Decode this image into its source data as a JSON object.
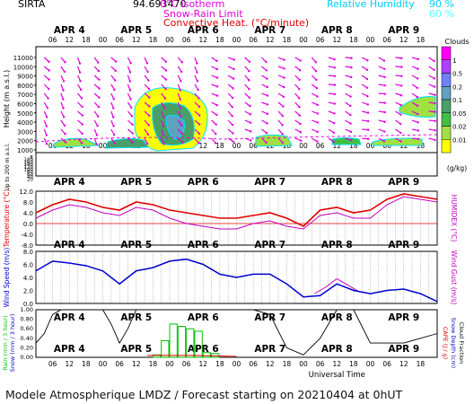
{
  "header": {
    "site": "SIRTA",
    "coords": "94.693470",
    "legend_isotherm": "0°C isotherm",
    "legend_snowrain": "Snow-Rain Limit",
    "legend_convective": "Convective Heat. (°C/minute)",
    "rh_label": "Relative Humidity",
    "rh_90": "90 %",
    "rh_60": "60 %"
  },
  "footer": {
    "text": "Modele Atmospherique LMDZ / Forecast starting on 20210404 at 0hUT",
    "xaxis_title": "Universal Time"
  },
  "colors": {
    "wind_barb": "#e000e0",
    "temperature": "#e00000",
    "humidex": "#c000c0",
    "wind_speed": "#0000d0",
    "rain": "#00c000",
    "snow_cape": "#000000",
    "cloud_edge_90": "#00e0ff",
    "cloud_edge_60": "#80ffff"
  },
  "chart_data": {
    "type": "meteogram",
    "days": [
      "APR 4",
      "APR 5",
      "APR 6",
      "APR 7",
      "APR 8",
      "APR 9"
    ],
    "hour_ticks": [
      "06",
      "12",
      "18",
      "00"
    ],
    "clouds": {
      "title": "Clouds",
      "unit": "(g/kg)",
      "colorbar_labels": [
        "1",
        "0.5",
        "0.2",
        "0.1",
        "0.05",
        "0.02",
        "0.01"
      ],
      "colorbar_colors": [
        "#ff00ff",
        "#b040ff",
        "#7080ff",
        "#60a0c0",
        "#48a068",
        "#40c040",
        "#a0e040",
        "#ffff00"
      ],
      "height_axis_title": "Height (m a.s.l.)",
      "height_ticks": [
        "11000",
        "10000",
        "9000",
        "8000",
        "7000",
        "6000",
        "5000",
        "4000",
        "3000",
        "2000",
        "1000"
      ],
      "low_ticks": [
        "E",
        "180",
        "160",
        "140",
        "120",
        "100",
        "80",
        "60",
        "40",
        "20"
      ],
      "low_axis_title": "Up to 200 m a.s.l."
    },
    "temperature": {
      "ylabel": "Temperature (°C)",
      "ylabel_right": "HUMIDEX (°C)",
      "ticks": [
        "12.0",
        "8.0",
        "4.0",
        "0.0",
        "-4.0",
        "-8.0"
      ],
      "ylim": [
        -8,
        12
      ],
      "x_hours": [
        0,
        6,
        12,
        18,
        24,
        30,
        36,
        42,
        48,
        54,
        60,
        66,
        72,
        78,
        84,
        90,
        96,
        102,
        108,
        114,
        120,
        126,
        132,
        138,
        144
      ],
      "temperature": [
        4,
        7,
        9,
        8,
        6,
        5,
        8,
        7,
        5,
        4,
        3,
        2,
        2,
        3,
        4,
        2,
        -1,
        5,
        6,
        4,
        5,
        9,
        11,
        10,
        9
      ],
      "humidex": [
        2,
        5,
        7,
        6,
        4,
        3,
        6,
        5,
        2,
        0,
        -1,
        -2,
        -2,
        0,
        1,
        -1,
        -2,
        3,
        4,
        2,
        2,
        7,
        10,
        9,
        8
      ]
    },
    "wind": {
      "ylabel": "Wind Speed (m/s)",
      "ylabel_right": "Wind Gust (m/s)",
      "ticks": [
        "8.0",
        "6.0",
        "4.0",
        "2.0",
        "0.0"
      ],
      "ylim": [
        0,
        8
      ],
      "x_hours": [
        0,
        6,
        12,
        18,
        24,
        30,
        36,
        42,
        48,
        54,
        60,
        66,
        72,
        78,
        84,
        90,
        96,
        102,
        108,
        114,
        120,
        126,
        132,
        138,
        144
      ],
      "speed": [
        5,
        6.5,
        6.2,
        5.8,
        5,
        3,
        5,
        5.5,
        6.5,
        6.8,
        6,
        4.5,
        4,
        4.5,
        4.5,
        3,
        1,
        1.2,
        3,
        2,
        1.5,
        2,
        2.2,
        1.5,
        0.3
      ],
      "gust_x_hours": [
        100,
        104,
        108,
        112,
        116
      ],
      "gust": [
        1.5,
        2.5,
        3.8,
        2.8,
        1.8
      ]
    },
    "precip": {
      "ylabel": "Rain (mm / 3 hour)",
      "ylabel2": "Snow (mm / 3 hour)",
      "ylabel_right1": "CAPE (J / g)",
      "ylabel_right2": "Snow Depth (cm)",
      "ylabel_right3": "Cloud Fraction",
      "ticks": [
        "1.00",
        "0.80",
        "0.60",
        "0.40",
        "0.20",
        "0.00"
      ],
      "ylim": [
        0,
        1
      ],
      "rain_bars": [
        {
          "hour": 42,
          "value": 0.05
        },
        {
          "hour": 45,
          "value": 0.35
        },
        {
          "hour": 48,
          "value": 0.7
        },
        {
          "hour": 51,
          "value": 0.65
        },
        {
          "hour": 54,
          "value": 0.6
        },
        {
          "hour": 57,
          "value": 0.55
        },
        {
          "hour": 60,
          "value": 0.1
        },
        {
          "hour": 63,
          "value": 0.08
        }
      ],
      "cloud_fraction_x": [
        0,
        3,
        6,
        9,
        12,
        24,
        27,
        30,
        33,
        36,
        42,
        45,
        48,
        60,
        66,
        72,
        78,
        84,
        90,
        96,
        102,
        108,
        114,
        120,
        126,
        132,
        138,
        144
      ],
      "cloud_fraction": [
        0.3,
        0.5,
        0.9,
        1.0,
        1.0,
        1.0,
        0.7,
        0.3,
        0.6,
        1.0,
        1.0,
        1.0,
        1.0,
        1.0,
        1.0,
        1.0,
        1.0,
        0.9,
        0.2,
        0.05,
        0.4,
        1.0,
        1.0,
        0.3,
        0.3,
        0.3,
        0.4,
        0.5
      ],
      "surface_red_x": [
        40,
        56,
        72
      ],
      "surface_red": [
        0.04,
        0.04,
        0.02
      ]
    }
  }
}
